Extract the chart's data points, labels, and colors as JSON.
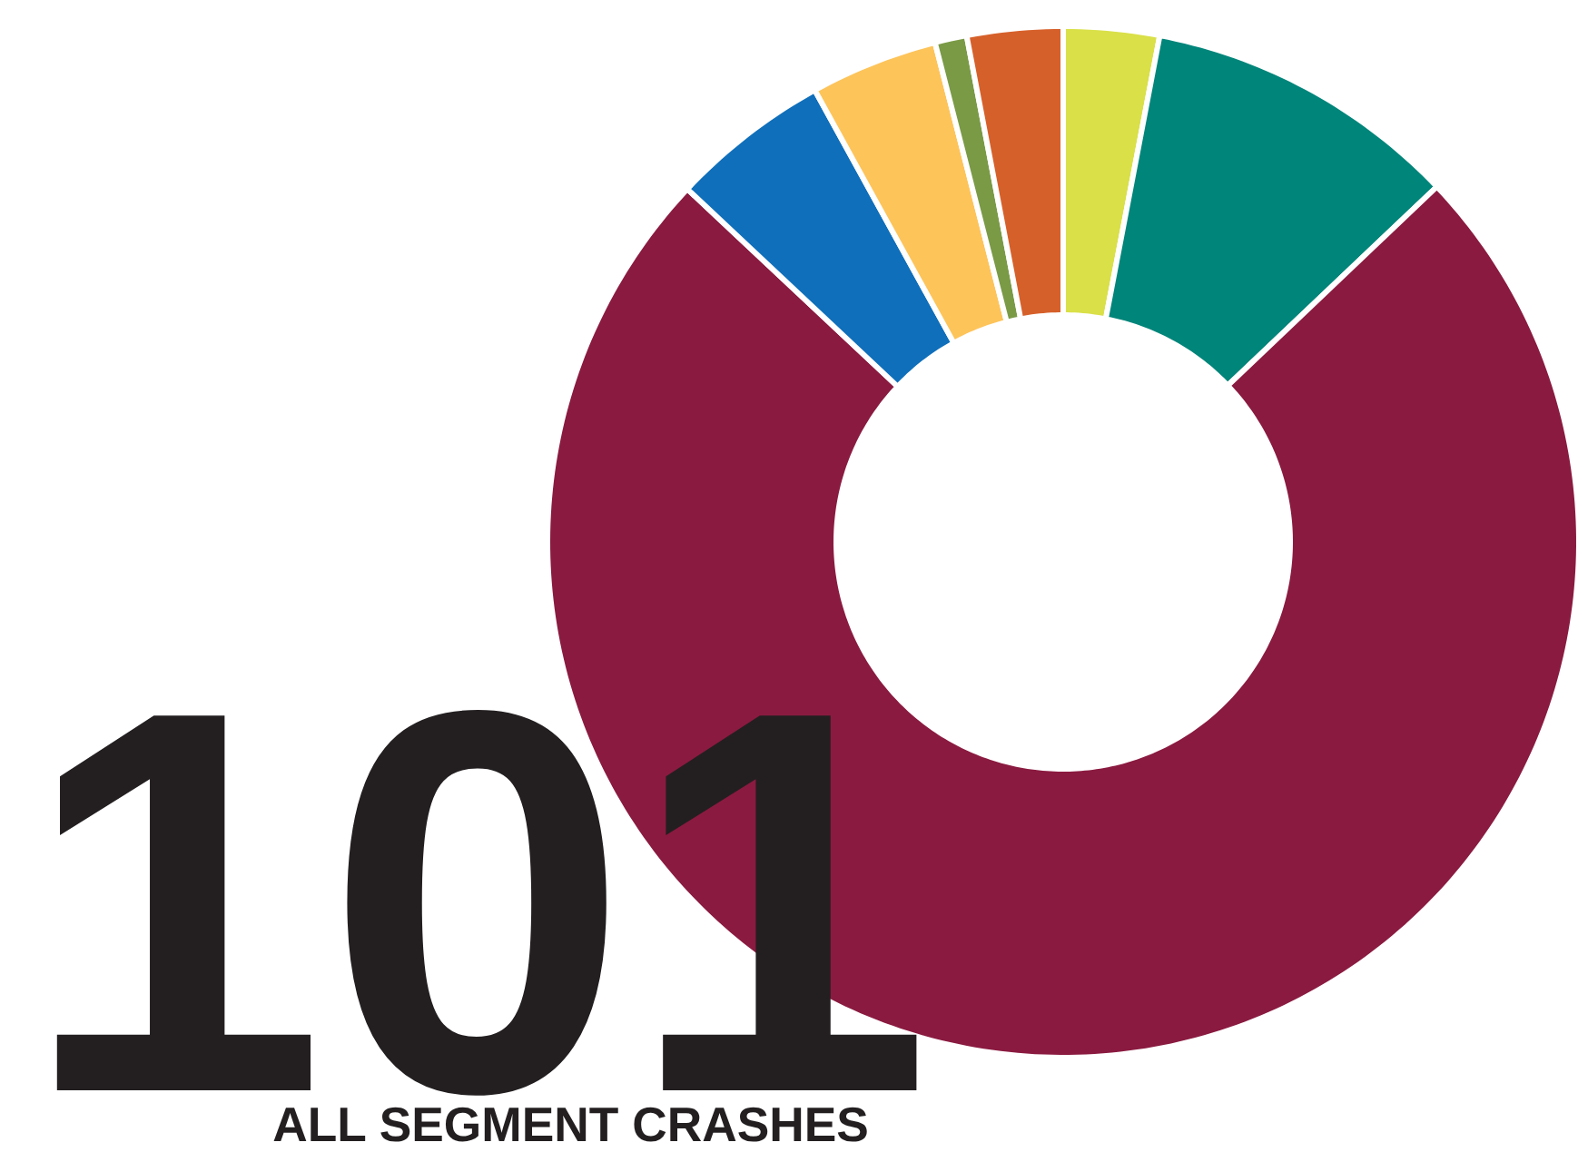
{
  "chart_data": {
    "type": "donut",
    "title": "101",
    "subtitle": "ALL SEGMENT CRASHES",
    "categories": [
      null,
      null,
      null,
      null,
      null,
      null,
      null
    ],
    "values": [
      3.0,
      9.9,
      74.1,
      5.0,
      4.0,
      1.0,
      3.0
    ],
    "colors": [
      "#d9e048",
      "#00857a",
      "#8a1a40",
      "#0f6fbb",
      "#fdc45a",
      "#7a9a45",
      "#d6602a"
    ]
  }
}
